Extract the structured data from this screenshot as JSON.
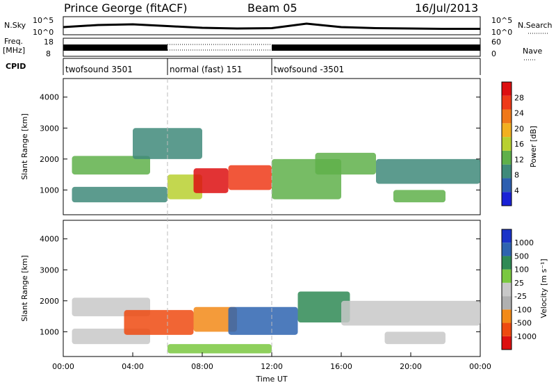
{
  "header": {
    "station": "Prince George (fitACF)",
    "beam": "Beam 05",
    "date": "16/Jul/2013"
  },
  "side_labels": {
    "nsky": "N.Sky",
    "freq_line1": "Freq.",
    "freq_line2": "[MHz]",
    "cpid": "CPID",
    "nsearch": "N.Search",
    "nave": "Nave"
  },
  "colors": {
    "power": [
      "#1a22d6",
      "#2d5fb0",
      "#3f8a7a",
      "#5fb04a",
      "#b8d030",
      "#f2b020",
      "#f07818",
      "#ee3a18",
      "#dd0f10"
    ],
    "velocity": [
      "#dd1010",
      "#ee4a10",
      "#f28a18",
      "#b0b0b0",
      "#c8c8c8",
      "#7ac840",
      "#2f8a55",
      "#2e64b0",
      "#1a33c8"
    ]
  },
  "chart_data": [
    {
      "type": "line",
      "title": "N.Sky / N.Search",
      "y_tick_labels": [
        "10^5",
        "10^0"
      ],
      "right_tick_labels": [
        "10^5",
        "10^0"
      ],
      "x": [
        0,
        2,
        4,
        6,
        8,
        10,
        12,
        14,
        16,
        18,
        20,
        22,
        24
      ],
      "series": [
        {
          "name": "N.Sky",
          "values": [
            2.0,
            2.6,
            2.8,
            2.3,
            1.8,
            1.6,
            1.7,
            3.0,
            2.0,
            1.7,
            1.6,
            1.5,
            1.5
          ]
        }
      ]
    },
    {
      "type": "line",
      "title": "Freq. / Nave",
      "left_tick_labels": [
        "18",
        "8"
      ],
      "right_tick_labels": [
        "60",
        "0"
      ],
      "segments": [
        {
          "start": 0,
          "end": 6,
          "style": "solid"
        },
        {
          "start": 6,
          "end": 12,
          "style": "dotted"
        },
        {
          "start": 12,
          "end": 24,
          "style": "solid"
        }
      ]
    },
    {
      "type": "table",
      "title": "CPID",
      "segments": [
        {
          "start": 0,
          "end": 6,
          "label": "twofsound 3501"
        },
        {
          "start": 6,
          "end": 12,
          "label": "normal (fast) 151"
        },
        {
          "start": 12,
          "end": 24,
          "label": "twofsound -3501"
        }
      ]
    },
    {
      "type": "heatmap",
      "ylabel": "Slant Range [km]",
      "ylim": [
        200,
        4600
      ],
      "y_ticks": [
        1000,
        2000,
        3000,
        4000
      ],
      "colorbar": {
        "label": "Power [dB]",
        "tick_labels": [
          "4",
          "8",
          "12",
          "16",
          "20",
          "24",
          "28"
        ]
      },
      "echoes": [
        {
          "t0": 0.5,
          "t1": 6,
          "r0": 600,
          "r1": 1100,
          "level": 2
        },
        {
          "t0": 0.5,
          "t1": 5,
          "r0": 1500,
          "r1": 2100,
          "level": 3
        },
        {
          "t0": 4,
          "t1": 8,
          "r0": 2000,
          "r1": 3000,
          "level": 2
        },
        {
          "t0": 6,
          "t1": 8,
          "r0": 700,
          "r1": 1500,
          "level": 4
        },
        {
          "t0": 7.5,
          "t1": 9.5,
          "r0": 900,
          "r1": 1700,
          "level": 8
        },
        {
          "t0": 9.5,
          "t1": 12,
          "r0": 1000,
          "r1": 1800,
          "level": 7
        },
        {
          "t0": 12,
          "t1": 16,
          "r0": 700,
          "r1": 2000,
          "level": 3
        },
        {
          "t0": 14.5,
          "t1": 18,
          "r0": 1500,
          "r1": 2200,
          "level": 3
        },
        {
          "t0": 18,
          "t1": 24,
          "r0": 1200,
          "r1": 2000,
          "level": 2
        },
        {
          "t0": 19,
          "t1": 22,
          "r0": 600,
          "r1": 1000,
          "level": 3
        }
      ]
    },
    {
      "type": "heatmap",
      "xlabel": "Time UT",
      "ylabel": "Slant Range [km]",
      "ylim": [
        200,
        4600
      ],
      "y_ticks": [
        1000,
        2000,
        3000,
        4000
      ],
      "x_ticks": [
        0,
        4,
        8,
        12,
        16,
        20,
        24
      ],
      "x_tick_labels": [
        "00:00",
        "04:00",
        "08:00",
        "12:00",
        "16:00",
        "20:00",
        "00:00"
      ],
      "colorbar": {
        "label": "Velocity [m s⁻¹]",
        "tick_labels": [
          "-1000",
          "-500",
          "-100",
          "-25",
          "25",
          "100",
          "500",
          "1000"
        ]
      },
      "echoes": [
        {
          "t0": 0.5,
          "t1": 5,
          "r0": 600,
          "r1": 1100,
          "level": 4
        },
        {
          "t0": 0.5,
          "t1": 5,
          "r0": 1500,
          "r1": 2100,
          "level": 4
        },
        {
          "t0": 3.5,
          "t1": 7.5,
          "r0": 900,
          "r1": 1700,
          "level": 1
        },
        {
          "t0": 7.5,
          "t1": 10,
          "r0": 1000,
          "r1": 1800,
          "level": 2
        },
        {
          "t0": 9.5,
          "t1": 13.5,
          "r0": 900,
          "r1": 1800,
          "level": 7
        },
        {
          "t0": 13.5,
          "t1": 16.5,
          "r0": 1300,
          "r1": 2300,
          "level": 6
        },
        {
          "t0": 6,
          "t1": 12,
          "r0": 300,
          "r1": 600,
          "level": 5
        },
        {
          "t0": 16,
          "t1": 24,
          "r0": 1200,
          "r1": 2000,
          "level": 4
        },
        {
          "t0": 18.5,
          "t1": 22,
          "r0": 600,
          "r1": 1000,
          "level": 4
        }
      ]
    }
  ]
}
